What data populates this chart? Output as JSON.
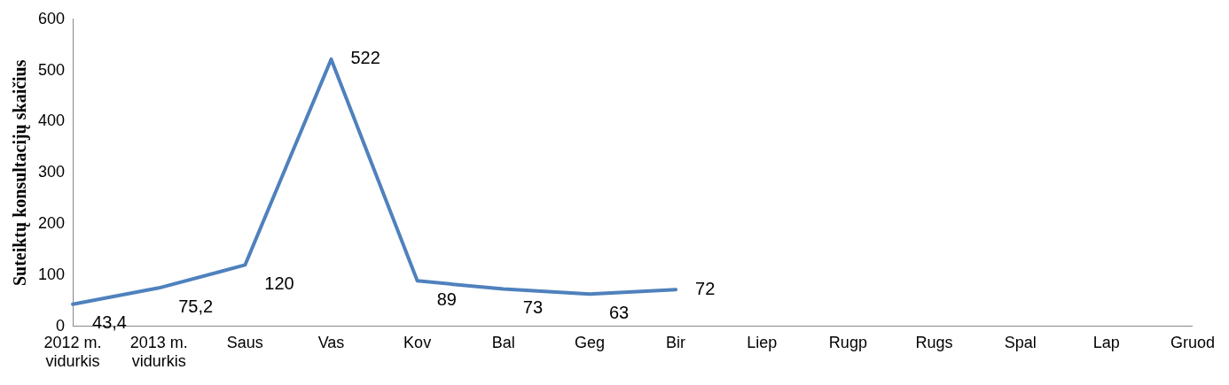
{
  "chart_data": {
    "type": "line",
    "ylabel": "Suteiktų konsultacijų skaičius",
    "categories": [
      "2012 m. vidurkis",
      "2013 m. vidurkis",
      "Saus",
      "Vas",
      "Kov",
      "Bal",
      "Geg",
      "Bir",
      "Liep",
      "Rugp",
      "Rugs",
      "Spal",
      "Lap",
      "Gruod"
    ],
    "values": [
      43.4,
      75.2,
      120,
      522,
      89,
      73,
      63,
      72,
      null,
      null,
      null,
      null,
      null,
      null
    ],
    "value_labels": [
      "43,4",
      "75,2",
      "120",
      "522",
      "89",
      "73",
      "63",
      "72",
      null,
      null,
      null,
      null,
      null,
      null
    ],
    "color": "#4f81bd",
    "ylim": [
      0,
      600
    ],
    "yticks": [
      0,
      100,
      200,
      300,
      400,
      500,
      600
    ],
    "grid": false,
    "legend": false,
    "marker": "none",
    "line_style": "solid"
  }
}
